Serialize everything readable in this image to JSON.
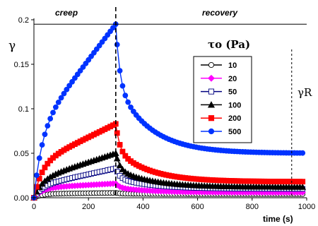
{
  "chart_data": {
    "type": "scatter",
    "title": "",
    "xlabel": "time (s)",
    "ylabel": "γ",
    "xlim": [
      0,
      1000
    ],
    "ylim": [
      0,
      0.2
    ],
    "x_ticks": [
      "0",
      "200",
      "400",
      "600",
      "800",
      "1000"
    ],
    "y_ticks": [
      "0.00",
      "0.05",
      "0.1",
      "0.15",
      "0.2"
    ],
    "grid": false,
    "legend_position": "center-right",
    "legend_title": "τo (Pa)",
    "annotations": {
      "creep": "creep",
      "recovery": "recovery",
      "recoverable_strain": "γR",
      "step_time": 300,
      "gamma_R_time": 945,
      "top_reference_line": 0.195
    },
    "series": [
      {
        "name": "10",
        "color": "#000000",
        "marker": "circle-open",
        "creep_end": 0.0055,
        "residual": 0.004,
        "creep_rise": 0.001
      },
      {
        "name": "20",
        "color": "#ff00ff",
        "marker": "diamond",
        "creep_end": 0.016,
        "residual": 0.006,
        "creep_rise": 0.005
      },
      {
        "name": "50",
        "color": "#000080",
        "marker": "square-open",
        "creep_end": 0.033,
        "residual": 0.01,
        "creep_rise": 0.02
      },
      {
        "name": "100",
        "color": "#000000",
        "marker": "triangle",
        "creep_end": 0.05,
        "residual": 0.012,
        "creep_rise": 0.03
      },
      {
        "name": "200",
        "color": "#ff0000",
        "marker": "square",
        "creep_end": 0.083,
        "residual": 0.018,
        "creep_rise": 0.045
      },
      {
        "name": "500",
        "color": "#0033ff",
        "marker": "circle",
        "creep_end": 0.195,
        "residual": 0.05,
        "creep_rise": 0.12
      }
    ]
  }
}
